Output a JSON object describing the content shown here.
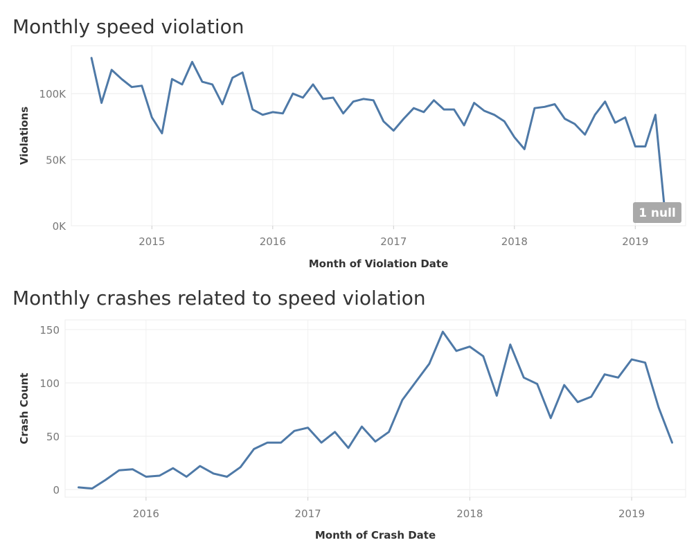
{
  "charts": [
    {
      "title": "Monthly speed violation",
      "chart_data": {
        "type": "line",
        "title": "Monthly speed violation",
        "xlabel": "Month of Violation Date",
        "ylabel": "Violations",
        "x_tick_labels": [
          "2015",
          "2016",
          "2017",
          "2018",
          "2019"
        ],
        "y_tick_labels": [
          "0K",
          "50K",
          "100K"
        ],
        "ylim": [
          0,
          130000
        ],
        "x_start": "2014-07",
        "x_domain": [
          "2014-05",
          "2019-06"
        ],
        "series": [
          {
            "values": [
              127000,
              93000,
              118000,
              111000,
              105000,
              106000,
              82000,
              70000,
              111000,
              107000,
              124000,
              109000,
              107000,
              92000,
              112000,
              116000,
              88000,
              84000,
              86000,
              85000,
              100000,
              97000,
              107000,
              96000,
              97000,
              85000,
              94000,
              96000,
              95000,
              79000,
              72000,
              81000,
              89000,
              86000,
              95000,
              88000,
              88000,
              76000,
              93000,
              87000,
              84000,
              79000,
              67000,
              58000,
              89000,
              90000,
              92000,
              81000,
              77000,
              69000,
              84000,
              94000,
              78000,
              82000,
              60000,
              60000,
              84000,
              6000
            ],
            "color": "#4e79a7"
          }
        ],
        "annotation": "1 null",
        "grid": true
      }
    },
    {
      "title": "Monthly crashes related to speed violation",
      "chart_data": {
        "type": "line",
        "title": "Monthly crashes related to speed violation",
        "xlabel": "Month of Crash Date",
        "ylabel": "Crash Count",
        "x_tick_labels": [
          "2016",
          "2017",
          "2018",
          "2019"
        ],
        "y_tick_labels": [
          "0",
          "50",
          "100",
          "150"
        ],
        "ylim": [
          0,
          150
        ],
        "x_start": "2015-08",
        "x_domain": [
          "2015-07",
          "2019-05"
        ],
        "series": [
          {
            "values": [
              2,
              1,
              9,
              18,
              19,
              12,
              13,
              20,
              12,
              22,
              15,
              12,
              21,
              38,
              44,
              44,
              55,
              58,
              44,
              54,
              39,
              59,
              45,
              54,
              84,
              101,
              118,
              148,
              130,
              134,
              125,
              88,
              136,
              105,
              99,
              67,
              98,
              82,
              87,
              108,
              105,
              122,
              119,
              77,
              44
            ],
            "color": "#4e79a7"
          }
        ],
        "grid": true
      }
    }
  ]
}
